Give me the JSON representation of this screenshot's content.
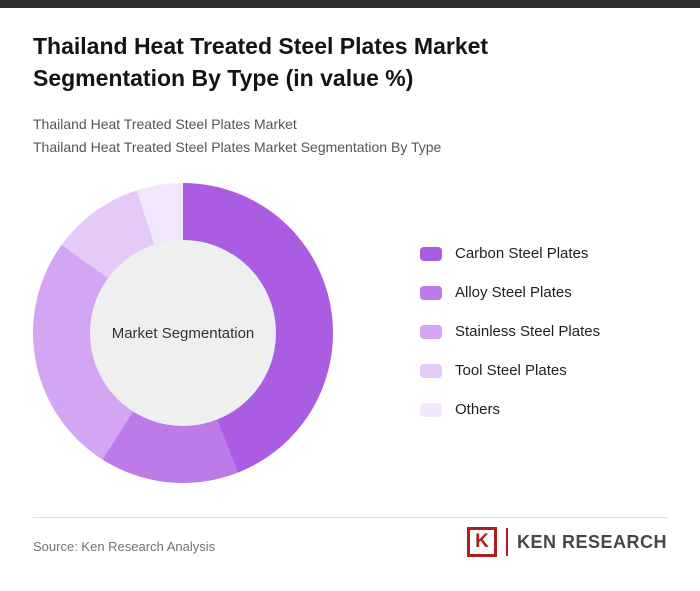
{
  "header": {
    "title": "Thailand Heat Treated Steel Plates Market Segmentation By Type (in value %)",
    "subtitle_line1": "Thailand Heat Treated Steel Plates Market",
    "subtitle_line2": "Thailand Heat Treated Steel Plates Market Segmentation By Type"
  },
  "chart_data": {
    "type": "pie",
    "variant": "donut",
    "title": "Thailand Heat Treated Steel Plates Market Segmentation By Type (in value %)",
    "center_label": "Market Segmentation",
    "categories": [
      "Carbon Steel Plates",
      "Alloy Steel Plates",
      "Stainless Steel Plates",
      "Tool Steel Plates",
      "Others"
    ],
    "values": [
      44,
      15,
      26,
      10,
      5
    ],
    "unit": "value %",
    "colors": [
      "#aa5ce2",
      "#bd7ae9",
      "#d4a5f2",
      "#e5c9f8",
      "#f2e6fc"
    ],
    "legend_position": "right",
    "start_angle_deg": 0,
    "direction": "clockwise"
  },
  "footer": {
    "source": "Source: Ken Research Analysis",
    "logo": {
      "k_letter": "K",
      "brand_text": "KEN RESEARCH",
      "accent_color": "#b01e23"
    }
  },
  "colors": {
    "topbar": "#2f2f2f",
    "center_circle": "#efefef",
    "divider": "#dddddd"
  }
}
